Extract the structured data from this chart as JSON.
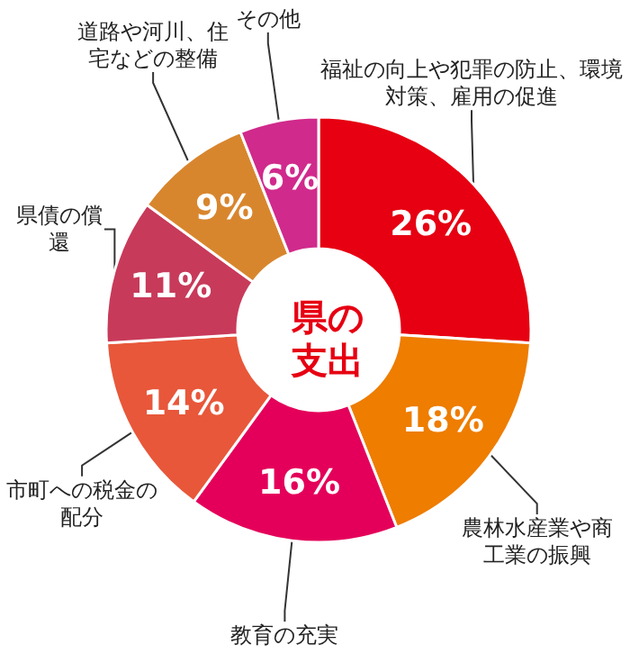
{
  "chart_data": {
    "type": "donut",
    "title": "県の支出",
    "categories": [
      "福祉の向上や犯罪の防止、環境対策、雇用の促進",
      "農林水産業や商工業の振興",
      "教育の充実",
      "市町への税金の配分",
      "県債の償還",
      "道路や河川、住宅などの整備",
      "その他"
    ],
    "values": [
      26,
      18,
      16,
      14,
      11,
      9,
      6
    ],
    "value_labels": [
      "26%",
      "18%",
      "16%",
      "14%",
      "11%",
      "9%",
      "6%"
    ],
    "colors": [
      "#e60012",
      "#ee7d00",
      "#e4005a",
      "#e8573a",
      "#c83a5a",
      "#d8862e",
      "#d02a8c"
    ],
    "legend": false
  }
}
